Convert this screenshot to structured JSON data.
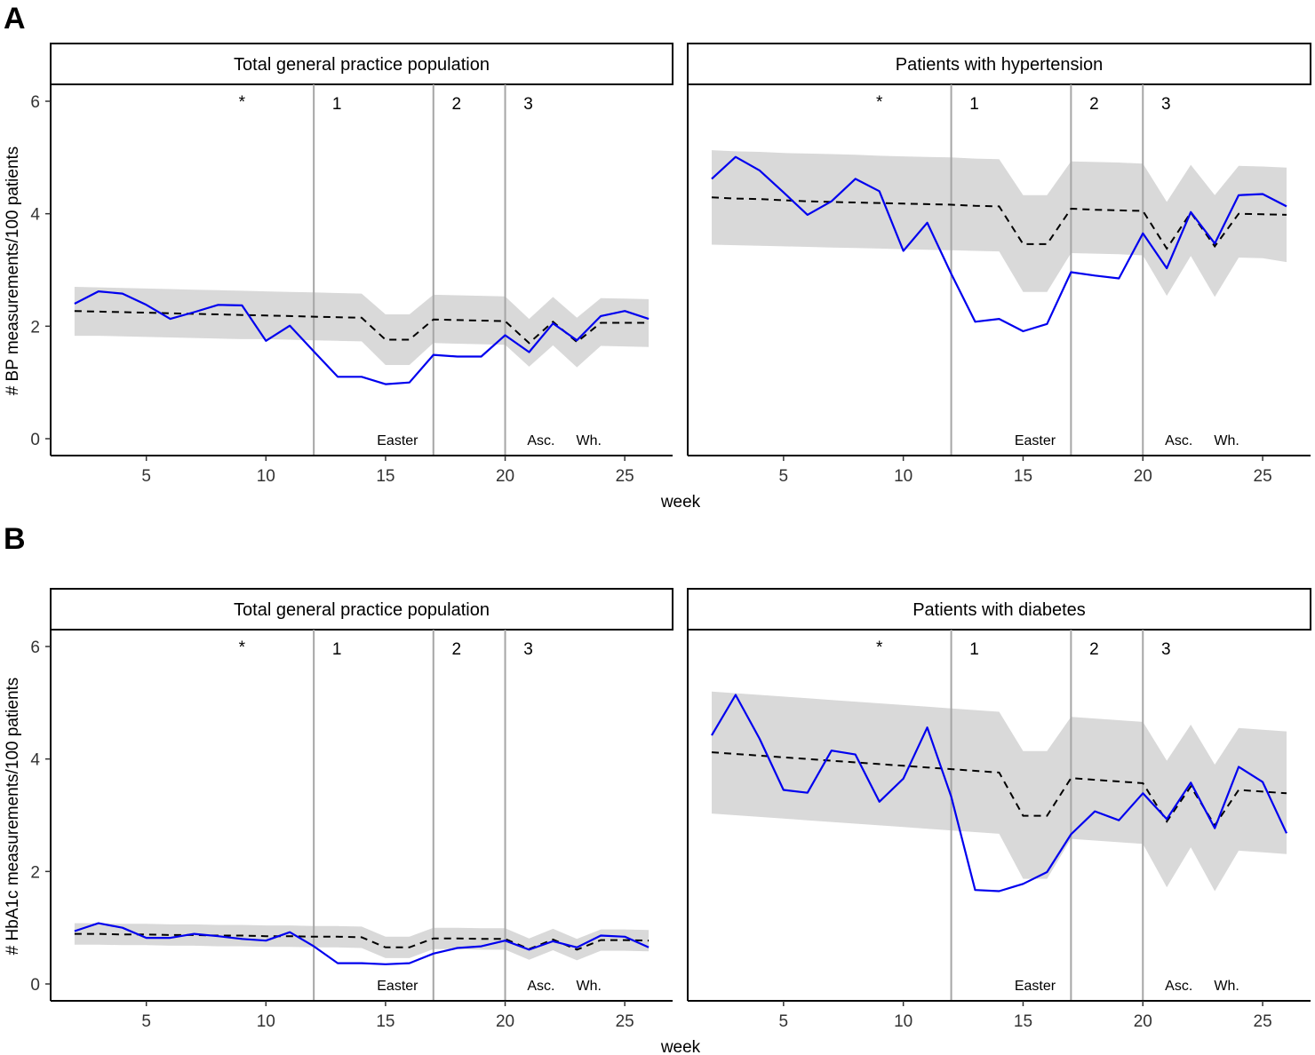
{
  "figure": {
    "rows": [
      {
        "letter": "A",
        "ylabel": "# BP measurements/100 patients",
        "xlabel": "week"
      },
      {
        "letter": "B",
        "ylabel": "# HbA1c measurements/100 patients",
        "xlabel": "week"
      }
    ]
  },
  "chart_data": [
    {
      "type": "line",
      "panel": "A",
      "title": "Total general practice population",
      "xlabel": "week",
      "ylabel": "# BP measurements/100 patients",
      "xlim": [
        1,
        27
      ],
      "ylim": [
        -0.3,
        6.3
      ],
      "x_ticks": [
        5,
        10,
        15,
        20,
        25
      ],
      "y_ticks": [
        0,
        2,
        4,
        6
      ],
      "vlines": [
        {
          "x": 12,
          "label": "1"
        },
        {
          "x": 17,
          "label": "2"
        },
        {
          "x": 20,
          "label": "3"
        }
      ],
      "star_annotation": {
        "x": 9,
        "label": "*"
      },
      "holiday_labels": [
        {
          "x": 15.5,
          "label": "Easter"
        },
        {
          "x": 21.5,
          "label": "Asc."
        },
        {
          "x": 23.5,
          "label": "Wh."
        }
      ],
      "x": [
        2,
        3,
        4,
        5,
        6,
        7,
        8,
        9,
        10,
        11,
        12,
        13,
        14,
        15,
        16,
        17,
        18,
        19,
        20,
        21,
        22,
        23,
        24,
        25,
        26
      ],
      "series": [
        {
          "role": "observed",
          "color": "#0000ee",
          "values": [
            2.4,
            2.62,
            2.58,
            2.38,
            2.13,
            2.25,
            2.38,
            2.37,
            1.74,
            2.01,
            1.55,
            1.1,
            1.1,
            0.97,
            1.0,
            1.49,
            1.46,
            1.46,
            1.84,
            1.54,
            2.05,
            1.75,
            2.18,
            2.27,
            2.13
          ]
        },
        {
          "role": "expected",
          "color": "#000000",
          "values": [
            2.27,
            2.26,
            2.25,
            2.24,
            2.23,
            2.22,
            2.21,
            2.2,
            2.19,
            2.18,
            2.17,
            2.16,
            2.15,
            1.76,
            1.76,
            2.12,
            2.11,
            2.1,
            2.09,
            1.7,
            2.08,
            1.72,
            2.06,
            2.06,
            2.06
          ]
        },
        {
          "role": "interval",
          "color": "#d9d9d9",
          "lower": [
            1.83,
            1.83,
            1.82,
            1.81,
            1.8,
            1.79,
            1.78,
            1.77,
            1.77,
            1.76,
            1.75,
            1.74,
            1.73,
            1.31,
            1.31,
            1.7,
            1.69,
            1.68,
            1.67,
            1.28,
            1.66,
            1.27,
            1.65,
            1.64,
            1.63
          ],
          "upper": [
            2.7,
            2.69,
            2.68,
            2.67,
            2.66,
            2.65,
            2.64,
            2.63,
            2.62,
            2.61,
            2.6,
            2.59,
            2.58,
            2.21,
            2.21,
            2.56,
            2.55,
            2.54,
            2.53,
            2.13,
            2.52,
            2.15,
            2.5,
            2.49,
            2.48
          ]
        }
      ]
    },
    {
      "type": "line",
      "panel": "A",
      "title": "Patients with hypertension",
      "xlabel": "week",
      "ylabel": "",
      "xlim": [
        1,
        27
      ],
      "ylim": [
        -0.3,
        6.3
      ],
      "x_ticks": [
        5,
        10,
        15,
        20,
        25
      ],
      "y_ticks": [],
      "vlines": [
        {
          "x": 12,
          "label": "1"
        },
        {
          "x": 17,
          "label": "2"
        },
        {
          "x": 20,
          "label": "3"
        }
      ],
      "star_annotation": {
        "x": 9,
        "label": "*"
      },
      "holiday_labels": [
        {
          "x": 15.5,
          "label": "Easter"
        },
        {
          "x": 21.5,
          "label": "Asc."
        },
        {
          "x": 23.5,
          "label": "Wh."
        }
      ],
      "x": [
        2,
        3,
        4,
        5,
        6,
        7,
        8,
        9,
        10,
        11,
        12,
        13,
        14,
        15,
        16,
        17,
        18,
        19,
        20,
        21,
        22,
        23,
        24,
        25,
        26
      ],
      "series": [
        {
          "role": "observed",
          "color": "#0000ee",
          "values": [
            4.62,
            5.01,
            4.77,
            4.38,
            3.98,
            4.22,
            4.62,
            4.4,
            3.34,
            3.84,
            2.93,
            2.08,
            2.13,
            1.91,
            2.04,
            2.96,
            2.9,
            2.85,
            3.65,
            3.03,
            4.03,
            3.47,
            4.33,
            4.35,
            4.13
          ]
        },
        {
          "role": "expected",
          "color": "#000000",
          "values": [
            4.29,
            4.27,
            4.26,
            4.24,
            4.22,
            4.21,
            4.2,
            4.19,
            4.18,
            4.17,
            4.16,
            4.14,
            4.13,
            3.46,
            3.46,
            4.09,
            4.07,
            4.06,
            4.05,
            3.38,
            4.02,
            3.42,
            4.0,
            3.99,
            3.98
          ]
        },
        {
          "role": "interval",
          "color": "#d9d9d9",
          "lower": [
            3.45,
            3.44,
            3.43,
            3.42,
            3.41,
            3.4,
            3.39,
            3.38,
            3.37,
            3.36,
            3.35,
            3.34,
            3.33,
            2.61,
            2.61,
            3.3,
            3.29,
            3.28,
            3.26,
            2.54,
            3.25,
            2.52,
            3.22,
            3.21,
            3.14
          ],
          "upper": [
            5.13,
            5.11,
            5.1,
            5.08,
            5.07,
            5.06,
            5.05,
            5.03,
            5.02,
            5.01,
            5.0,
            4.98,
            4.97,
            4.33,
            4.33,
            4.93,
            4.92,
            4.91,
            4.89,
            4.21,
            4.87,
            4.33,
            4.85,
            4.84,
            4.82
          ]
        }
      ]
    },
    {
      "type": "line",
      "panel": "B",
      "title": "Total general practice population",
      "xlabel": "week",
      "ylabel": "# HbA1c measurements/100 patients",
      "xlim": [
        1,
        27
      ],
      "ylim": [
        -0.3,
        6.3
      ],
      "x_ticks": [
        5,
        10,
        15,
        20,
        25
      ],
      "y_ticks": [
        0,
        2,
        4,
        6
      ],
      "vlines": [
        {
          "x": 12,
          "label": "1"
        },
        {
          "x": 17,
          "label": "2"
        },
        {
          "x": 20,
          "label": "3"
        }
      ],
      "star_annotation": {
        "x": 9,
        "label": "*"
      },
      "holiday_labels": [
        {
          "x": 15.5,
          "label": "Easter"
        },
        {
          "x": 21.5,
          "label": "Asc."
        },
        {
          "x": 23.5,
          "label": "Wh."
        }
      ],
      "x": [
        2,
        3,
        4,
        5,
        6,
        7,
        8,
        9,
        10,
        11,
        12,
        13,
        14,
        15,
        16,
        17,
        18,
        19,
        20,
        21,
        22,
        23,
        24,
        25,
        26
      ],
      "series": [
        {
          "role": "observed",
          "color": "#0000ee",
          "values": [
            0.94,
            1.08,
            1.0,
            0.82,
            0.82,
            0.89,
            0.85,
            0.8,
            0.77,
            0.92,
            0.67,
            0.37,
            0.37,
            0.35,
            0.37,
            0.54,
            0.64,
            0.67,
            0.77,
            0.61,
            0.76,
            0.65,
            0.86,
            0.84,
            0.65
          ]
        },
        {
          "role": "expected",
          "color": "#000000",
          "values": [
            0.89,
            0.89,
            0.88,
            0.88,
            0.87,
            0.87,
            0.86,
            0.86,
            0.85,
            0.85,
            0.84,
            0.84,
            0.83,
            0.65,
            0.65,
            0.81,
            0.81,
            0.8,
            0.8,
            0.62,
            0.79,
            0.61,
            0.78,
            0.78,
            0.77
          ]
        },
        {
          "role": "interval",
          "color": "#d9d9d9",
          "lower": [
            0.7,
            0.7,
            0.69,
            0.69,
            0.68,
            0.68,
            0.67,
            0.67,
            0.66,
            0.66,
            0.65,
            0.65,
            0.64,
            0.46,
            0.46,
            0.62,
            0.62,
            0.61,
            0.61,
            0.43,
            0.6,
            0.42,
            0.59,
            0.59,
            0.58
          ],
          "upper": [
            1.08,
            1.08,
            1.07,
            1.07,
            1.06,
            1.06,
            1.05,
            1.05,
            1.04,
            1.04,
            1.03,
            1.03,
            1.02,
            0.84,
            0.84,
            1.0,
            1.0,
            0.99,
            0.99,
            0.81,
            0.98,
            0.8,
            0.97,
            0.97,
            0.96
          ]
        }
      ]
    },
    {
      "type": "line",
      "panel": "B",
      "title": "Patients with diabetes",
      "xlabel": "week",
      "ylabel": "",
      "xlim": [
        1,
        27
      ],
      "ylim": [
        -0.3,
        6.3
      ],
      "x_ticks": [
        5,
        10,
        15,
        20,
        25
      ],
      "y_ticks": [],
      "vlines": [
        {
          "x": 12,
          "label": "1"
        },
        {
          "x": 17,
          "label": "2"
        },
        {
          "x": 20,
          "label": "3"
        }
      ],
      "star_annotation": {
        "x": 9,
        "label": "*"
      },
      "holiday_labels": [
        {
          "x": 15.5,
          "label": "Easter"
        },
        {
          "x": 21.5,
          "label": "Asc."
        },
        {
          "x": 23.5,
          "label": "Wh."
        }
      ],
      "x": [
        2,
        3,
        4,
        5,
        6,
        7,
        8,
        9,
        10,
        11,
        12,
        13,
        14,
        15,
        16,
        17,
        18,
        19,
        20,
        21,
        22,
        23,
        24,
        25,
        26
      ],
      "series": [
        {
          "role": "observed",
          "color": "#0000ee",
          "values": [
            4.42,
            5.14,
            4.36,
            3.45,
            3.4,
            4.15,
            4.08,
            3.24,
            3.65,
            4.56,
            3.33,
            1.67,
            1.65,
            1.78,
            1.99,
            2.66,
            3.07,
            2.91,
            3.39,
            2.93,
            3.58,
            2.77,
            3.86,
            3.59,
            2.68
          ]
        },
        {
          "role": "expected",
          "color": "#000000",
          "values": [
            4.12,
            4.09,
            4.06,
            4.03,
            4.0,
            3.97,
            3.94,
            3.91,
            3.88,
            3.85,
            3.82,
            3.79,
            3.76,
            2.99,
            2.99,
            3.66,
            3.63,
            3.6,
            3.57,
            2.89,
            3.51,
            2.82,
            3.45,
            3.42,
            3.39
          ]
        },
        {
          "role": "interval",
          "color": "#d9d9d9",
          "lower": [
            3.03,
            3.0,
            2.97,
            2.94,
            2.91,
            2.88,
            2.85,
            2.82,
            2.79,
            2.76,
            2.73,
            2.7,
            2.67,
            1.87,
            1.87,
            2.58,
            2.55,
            2.52,
            2.49,
            1.72,
            2.43,
            1.65,
            2.37,
            2.34,
            2.31
          ],
          "upper": [
            5.2,
            5.17,
            5.14,
            5.11,
            5.08,
            5.05,
            5.02,
            4.99,
            4.96,
            4.93,
            4.9,
            4.87,
            4.84,
            4.14,
            4.14,
            4.75,
            4.72,
            4.69,
            4.66,
            3.97,
            4.61,
            3.9,
            4.55,
            4.52,
            4.49
          ]
        }
      ]
    }
  ]
}
